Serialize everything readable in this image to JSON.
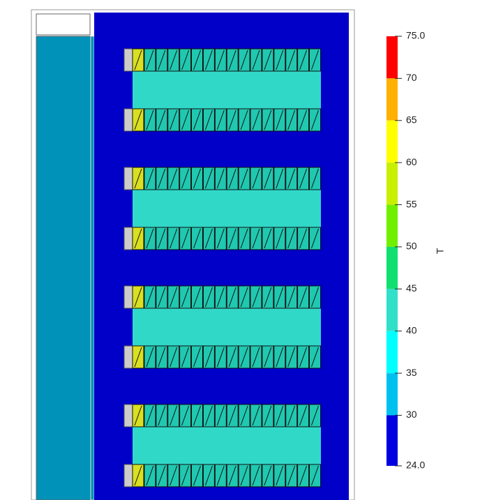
{
  "colorbar": {
    "label": "T",
    "range": [
      24,
      75
    ],
    "ticks": [
      {
        "value": 75,
        "label": "75.0"
      },
      70,
      65,
      60,
      55,
      50,
      45,
      40,
      35,
      30,
      {
        "value": 24,
        "label": "24.0"
      }
    ],
    "colors": [
      "#ff0000",
      "#ffb000",
      "#ffff00",
      "#c8f000",
      "#70f000",
      "#10e070",
      "#30e0c8",
      "#00ffff",
      "#00c0f0",
      "#0000e0"
    ]
  }
}
